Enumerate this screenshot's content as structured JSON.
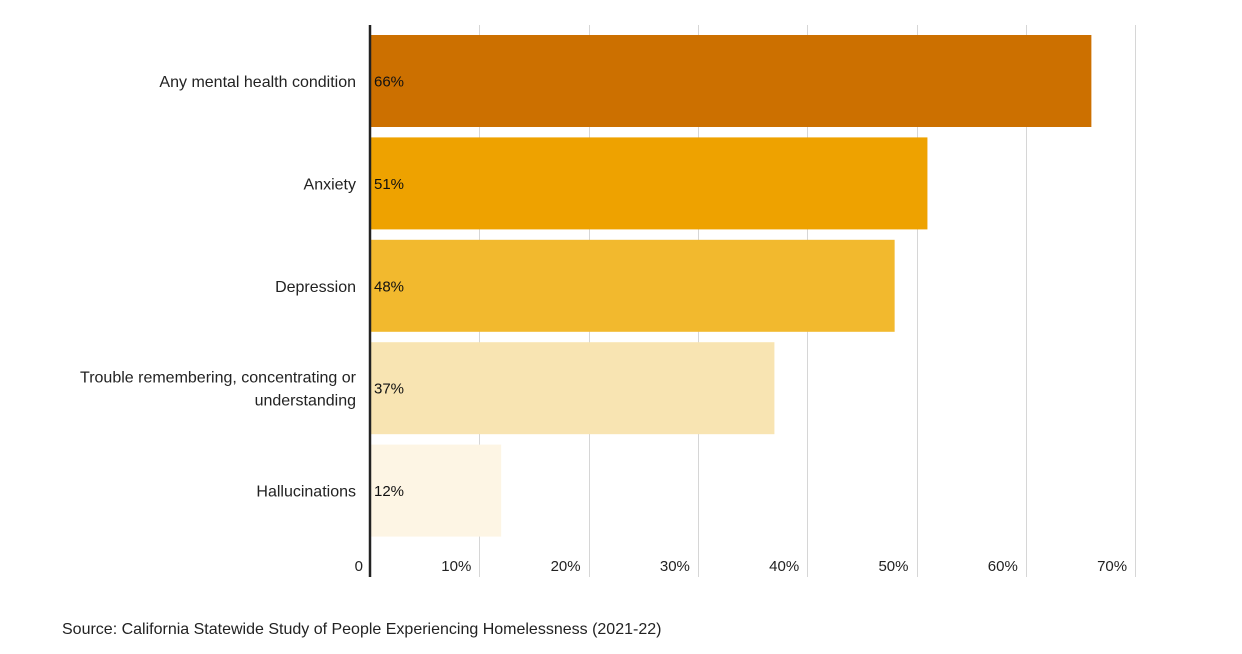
{
  "chart_data": {
    "type": "bar",
    "orientation": "horizontal",
    "categories": [
      "Any mental health condition",
      "Anxiety",
      "Depression",
      "Trouble remembering, concentrating or understanding",
      "Hallucinations"
    ],
    "category_lines": [
      [
        "Any mental health condition"
      ],
      [
        "Anxiety"
      ],
      [
        "Depression"
      ],
      [
        "Trouble remembering, concentrating or",
        "understanding"
      ],
      [
        "Hallucinations"
      ]
    ],
    "values": [
      66,
      51,
      48,
      37,
      12
    ],
    "value_labels": [
      "66%",
      "51%",
      "48%",
      "37%",
      "12%"
    ],
    "colors": [
      "#cc7000",
      "#eea200",
      "#f2b92e",
      "#f8e4b2",
      "#fdf5e4"
    ],
    "xlim": [
      0,
      70
    ],
    "ticks": [
      0,
      10,
      20,
      30,
      40,
      50,
      60,
      70
    ],
    "tick_labels": [
      "0",
      "10%",
      "20%",
      "30%",
      "40%",
      "50%",
      "60%",
      "70%"
    ],
    "grid": "vertical",
    "legend": "none"
  },
  "source": "Source: California Statewide Study of People Experiencing Homelessness (2021-22)"
}
